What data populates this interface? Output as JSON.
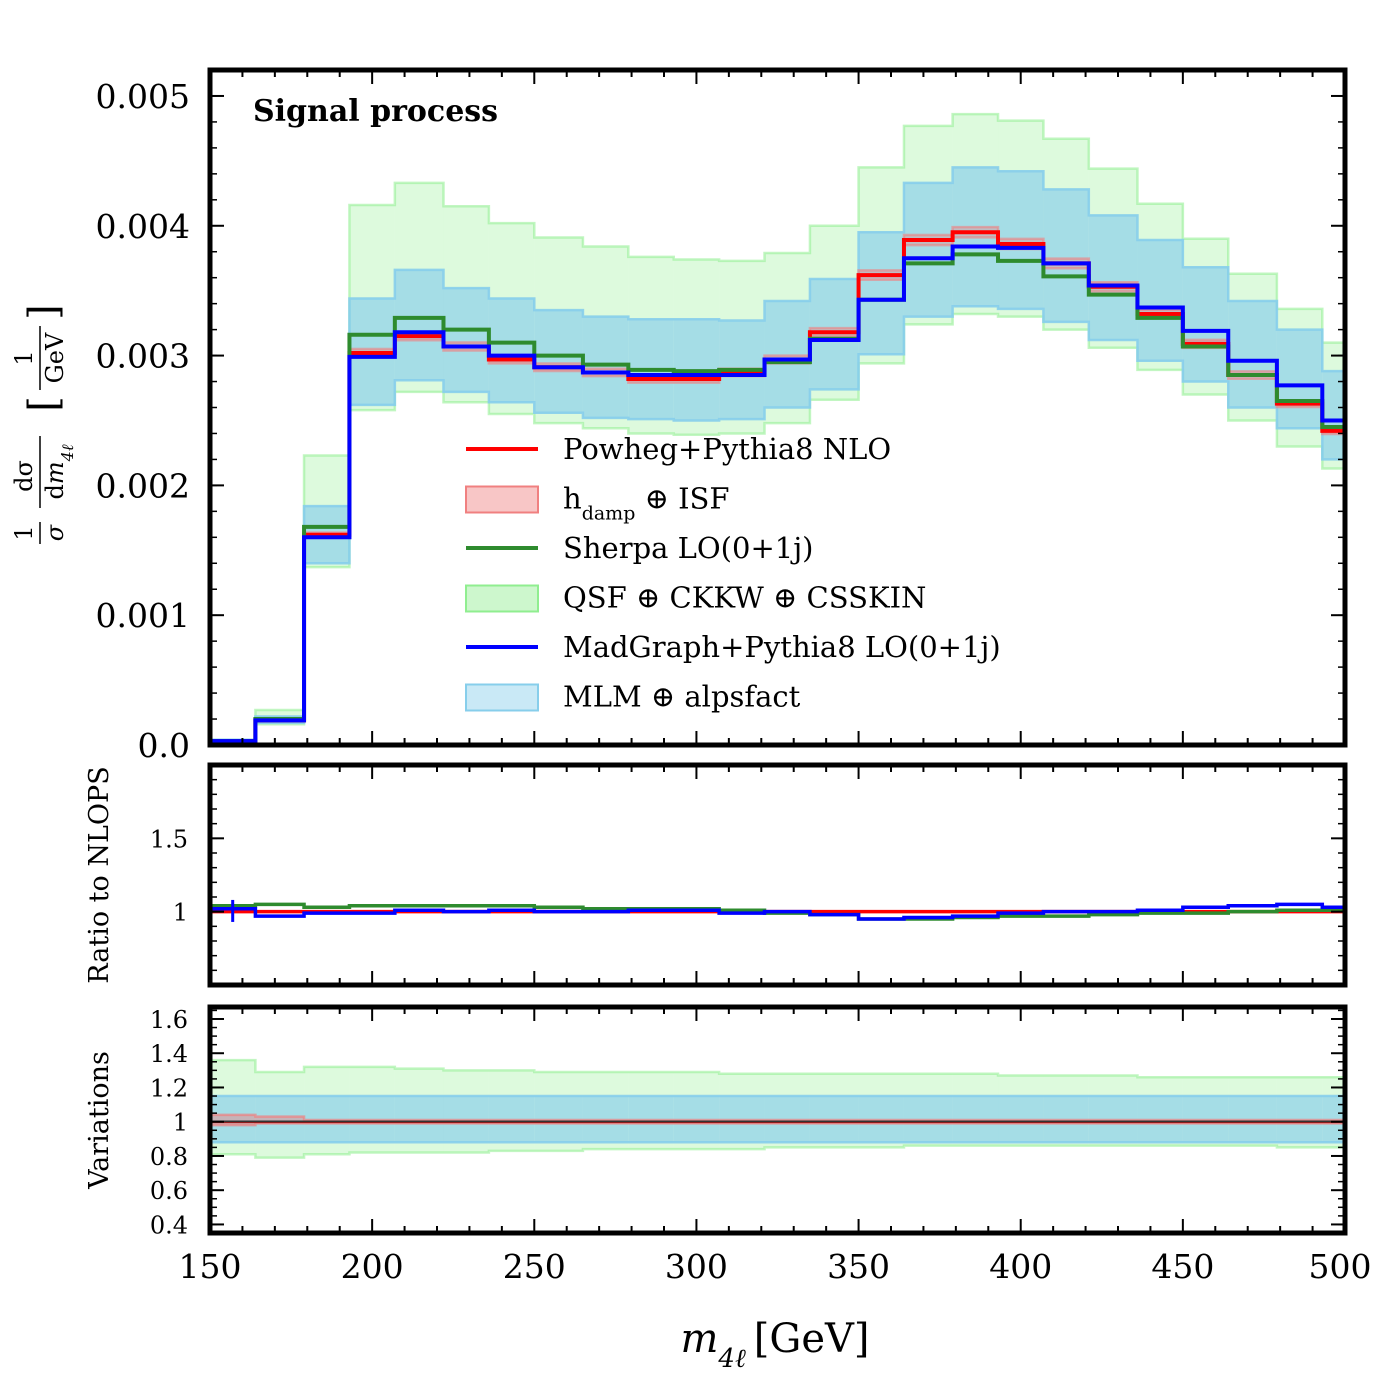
{
  "chart_data": {
    "type": "area",
    "bin_edges": [
      150,
      164,
      179,
      193,
      207,
      222,
      236,
      250,
      265,
      279,
      293,
      307,
      321,
      335,
      350,
      364,
      379,
      393,
      407,
      421,
      436,
      450,
      464,
      479,
      493,
      500
    ],
    "xlim": [
      150,
      500
    ],
    "x_ticks": [
      "150",
      "200",
      "250",
      "300",
      "350",
      "400",
      "450",
      "500"
    ],
    "xlabel": {
      "main": "m",
      "sub": "4ℓ",
      "unit": "[GeV]"
    },
    "panels": {
      "main": {
        "annotation": "Signal process",
        "ylim": [
          0,
          0.0052
        ],
        "y_ticks": [
          "0.0",
          "0.001",
          "0.002",
          "0.003",
          "0.004",
          "0.005"
        ],
        "ylabel": {
          "prefix": "1",
          "sigma": "σ",
          "num": "dσ",
          "den": "dm",
          "den_sub": "4ℓ",
          "unit_num": "1",
          "unit_den": "GeV"
        },
        "series": [
          {
            "name": "Powheg+Pythia8 NLO",
            "color": "#ff0000",
            "values": [
              3e-05,
              0.00019,
              0.00162,
              0.00302,
              0.00315,
              0.00307,
              0.00297,
              0.00291,
              0.00287,
              0.00282,
              0.00282,
              0.00287,
              0.00297,
              0.00318,
              0.00362,
              0.00389,
              0.00395,
              0.00386,
              0.00371,
              0.00353,
              0.00332,
              0.00309,
              0.00285,
              0.00263,
              0.00242
            ]
          },
          {
            "name": "Sherpa LO(0+1j)",
            "color": "#2e8b2e",
            "values": [
              3e-05,
              0.0002,
              0.00168,
              0.00316,
              0.00329,
              0.0032,
              0.0031,
              0.003,
              0.00293,
              0.00289,
              0.00288,
              0.00289,
              0.00295,
              0.00313,
              0.00343,
              0.00371,
              0.00378,
              0.00373,
              0.00361,
              0.00347,
              0.00329,
              0.00307,
              0.00285,
              0.00265,
              0.00245
            ]
          },
          {
            "name": "MadGraph+Pythia8 LO(0+1j)",
            "color": "#0000ff",
            "values": [
              3e-05,
              0.00019,
              0.0016,
              0.00299,
              0.00318,
              0.00307,
              0.003,
              0.00291,
              0.00287,
              0.00285,
              0.00285,
              0.00285,
              0.00297,
              0.00312,
              0.00343,
              0.00375,
              0.00384,
              0.00383,
              0.00371,
              0.00354,
              0.00337,
              0.00319,
              0.00296,
              0.00277,
              0.0025
            ]
          }
        ],
        "bands": [
          {
            "name": "QSF ⊕ CKKW ⊕ CSSKIN",
            "color": "#90ee90",
            "lower": [
              3e-05,
              0.00016,
              0.00137,
              0.00258,
              0.00272,
              0.00264,
              0.00255,
              0.00248,
              0.00244,
              0.0024,
              0.00239,
              0.0024,
              0.00248,
              0.00266,
              0.00294,
              0.00324,
              0.00332,
              0.0033,
              0.0032,
              0.00306,
              0.00289,
              0.0027,
              0.0025,
              0.0023,
              0.00213
            ],
            "upper": [
              4e-05,
              0.00027,
              0.00223,
              0.00416,
              0.00433,
              0.00415,
              0.00402,
              0.00391,
              0.00384,
              0.00376,
              0.00374,
              0.00373,
              0.00379,
              0.004,
              0.00445,
              0.00477,
              0.00486,
              0.00481,
              0.00467,
              0.00444,
              0.00417,
              0.0039,
              0.00363,
              0.00336,
              0.0031
            ]
          },
          {
            "name": "MLM ⊕ alpsfact",
            "color": "#87ceeb",
            "lower": [
              3e-05,
              0.00017,
              0.0014,
              0.00262,
              0.00281,
              0.00272,
              0.00264,
              0.00256,
              0.00252,
              0.00251,
              0.0025,
              0.00251,
              0.0026,
              0.00274,
              0.00301,
              0.0033,
              0.00338,
              0.00336,
              0.00326,
              0.00312,
              0.00296,
              0.0028,
              0.0026,
              0.00244,
              0.0022
            ]
          },
          {
            "name": "h_damp ⊕ ISF",
            "color": "#f08080",
            "note": "narrow band, close to nominal"
          }
        ],
        "mlm_upper": [
          4e-05,
          0.00022,
          0.00184,
          0.00344,
          0.00366,
          0.00352,
          0.00344,
          0.00335,
          0.0033,
          0.00328,
          0.00328,
          0.00327,
          0.00342,
          0.00359,
          0.00395,
          0.00433,
          0.00445,
          0.00442,
          0.00428,
          0.00408,
          0.00389,
          0.00368,
          0.00342,
          0.0032,
          0.00288
        ]
      },
      "ratio": {
        "ylabel": "Ratio to NLOPS",
        "ylim": [
          0.5,
          2.0
        ],
        "y_ticks": [
          "1",
          "1.5"
        ],
        "series": [
          {
            "name": "Powheg+Pythia8 NLO",
            "values": [
              1.0,
              1.0,
              1.0,
              1.0,
              1.0,
              1.0,
              1.0,
              1.0,
              1.0,
              1.0,
              1.0,
              1.0,
              1.0,
              1.0,
              1.0,
              1.0,
              1.0,
              1.0,
              1.0,
              1.0,
              1.0,
              1.0,
              1.0,
              1.0,
              1.0
            ]
          },
          {
            "name": "Sherpa LO(0+1j)",
            "values": [
              1.04,
              1.05,
              1.03,
              1.04,
              1.04,
              1.04,
              1.04,
              1.03,
              1.02,
              1.02,
              1.02,
              1.01,
              0.99,
              0.98,
              0.95,
              0.95,
              0.96,
              0.97,
              0.97,
              0.98,
              0.99,
              0.99,
              1.0,
              1.01,
              1.01
            ]
          },
          {
            "name": "MadGraph+Pythia8 LO(0+1j)",
            "values": [
              1.02,
              0.97,
              0.99,
              0.99,
              1.01,
              1.0,
              1.01,
              1.0,
              1.0,
              1.01,
              1.01,
              0.99,
              1.0,
              0.98,
              0.95,
              0.96,
              0.97,
              0.99,
              1.0,
              1.0,
              1.01,
              1.03,
              1.04,
              1.05,
              1.03
            ]
          }
        ]
      },
      "variations": {
        "ylabel": "Variations",
        "ylim": [
          0.35,
          1.67
        ],
        "y_ticks": [
          "0.4",
          "0.6",
          "0.8",
          "1",
          "1.2",
          "1.4",
          "1.6"
        ],
        "qsf_lower": [
          0.81,
          0.79,
          0.81,
          0.82,
          0.82,
          0.82,
          0.83,
          0.83,
          0.84,
          0.84,
          0.84,
          0.84,
          0.85,
          0.85,
          0.85,
          0.86,
          0.86,
          0.86,
          0.86,
          0.86,
          0.86,
          0.86,
          0.86,
          0.85,
          0.85
        ],
        "qsf_upper": [
          1.36,
          1.29,
          1.32,
          1.32,
          1.31,
          1.3,
          1.3,
          1.29,
          1.29,
          1.29,
          1.29,
          1.28,
          1.28,
          1.28,
          1.28,
          1.28,
          1.28,
          1.27,
          1.27,
          1.27,
          1.26,
          1.26,
          1.26,
          1.26,
          1.26
        ],
        "mlm_lower": [
          0.88,
          0.88,
          0.88,
          0.88,
          0.88,
          0.88,
          0.88,
          0.88,
          0.88,
          0.88,
          0.88,
          0.88,
          0.88,
          0.88,
          0.88,
          0.88,
          0.88,
          0.88,
          0.88,
          0.88,
          0.88,
          0.88,
          0.88,
          0.88,
          0.88
        ],
        "mlm_upper": [
          1.15,
          1.15,
          1.15,
          1.15,
          1.15,
          1.15,
          1.15,
          1.15,
          1.15,
          1.15,
          1.15,
          1.15,
          1.15,
          1.15,
          1.15,
          1.15,
          1.15,
          1.15,
          1.15,
          1.15,
          1.15,
          1.15,
          1.15,
          1.15,
          1.15
        ],
        "hdamp_lower": [
          0.98,
          0.99,
          0.99,
          0.99,
          0.99,
          0.99,
          0.99,
          0.99,
          0.99,
          0.99,
          0.99,
          0.99,
          0.99,
          0.99,
          0.99,
          0.99,
          0.99,
          0.99,
          0.99,
          0.99,
          0.99,
          0.99,
          0.99,
          0.99,
          0.99
        ],
        "hdamp_upper": [
          1.04,
          1.03,
          1.01,
          1.01,
          1.01,
          1.01,
          1.01,
          1.01,
          1.01,
          1.01,
          1.01,
          1.01,
          1.01,
          1.01,
          1.01,
          1.01,
          1.01,
          1.01,
          1.01,
          1.01,
          1.01,
          1.01,
          1.01,
          1.01,
          1.01
        ]
      }
    },
    "legend": {
      "placement": "center",
      "entries": [
        {
          "label": "Powheg+Pythia8 NLO",
          "kind": "line",
          "color": "#ff0000"
        },
        {
          "label_main": "h",
          "label_sub": "damp",
          "label_rest": " ⊕ ISF",
          "kind": "band",
          "color": "#f08080"
        },
        {
          "label": "Sherpa LO(0+1j)",
          "kind": "line",
          "color": "#2e8b2e"
        },
        {
          "label": "QSF ⊕ CKKW ⊕ CSSKIN",
          "kind": "band",
          "color": "#90ee90"
        },
        {
          "label": "MadGraph+Pythia8 LO(0+1j)",
          "kind": "line",
          "color": "#0000ff"
        },
        {
          "label": "MLM ⊕ alpsfact",
          "kind": "band",
          "color": "#87ceeb"
        }
      ]
    }
  }
}
